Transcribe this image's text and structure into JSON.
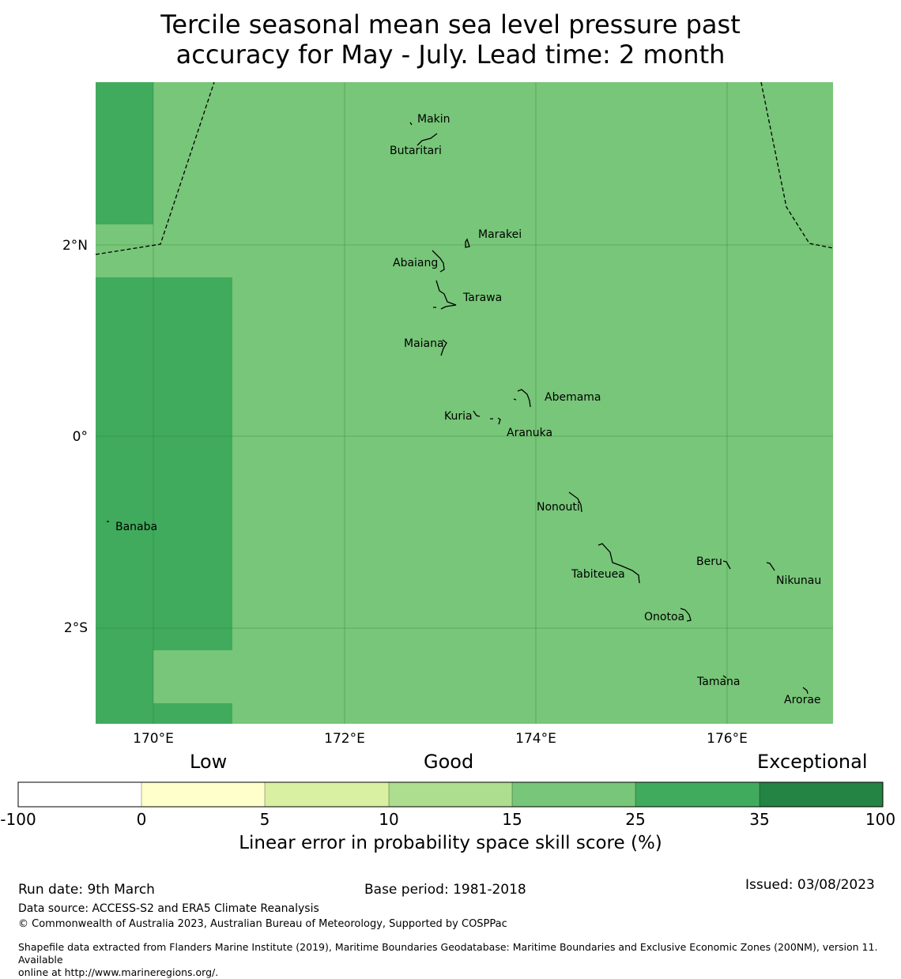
{
  "title_line1": "Tercile seasonal mean sea level pressure past",
  "title_line2": "accuracy for May - July. Lead time: 2 month",
  "map": {
    "lon_labels": [
      "170°E",
      "172°E",
      "174°E",
      "176°E"
    ],
    "lat_labels": [
      "2°N",
      "0°",
      "2°S"
    ],
    "islands": [
      "Makin",
      "Butaritari",
      "Marakei",
      "Abaiang",
      "Tarawa",
      "Maiana",
      "Abemama",
      "Kuria",
      "Aranuka",
      "Nonouti",
      "Banaba",
      "Beru",
      "Tabiteuea",
      "Nikunau",
      "Onotoa",
      "Tamana",
      "Arorae"
    ],
    "colors": {
      "skill_15_25": "#78c679",
      "skill_25_35": "#41ab5d",
      "grid": "#2a6b2a",
      "coast": "#000000"
    }
  },
  "colorbar": {
    "categories": [
      "Low",
      "Good",
      "Exceptional"
    ],
    "ticks": [
      "-100",
      "0",
      "5",
      "10",
      "15",
      "25",
      "35",
      "100"
    ],
    "colors": [
      "#ffffff",
      "#ffffcc",
      "#d9f0a3",
      "#addd8e",
      "#78c679",
      "#41ab5d",
      "#238443"
    ],
    "label": "Linear error in probability space skill score (%)"
  },
  "footer": {
    "run_date": "Run date: 9th March",
    "base_period": "Base period: 1981-2018",
    "issued": "Issued: 03/08/2023",
    "data_source": "Data source: ACCESS-S2 and ERA5 Climate Reanalysis",
    "copyright": "© Commonwealth of Australia 2023, Australian Bureau of Meteorology, Supported by COSPPac",
    "shapefile_line1": "Shapefile data extracted from Flanders Marine Institute (2019), Maritime Boundaries Geodatabase: Maritime Boundaries and Exclusive Economic Zones (200NM), version 11. Available",
    "shapefile_line2": "online at http://www.marineregions.org/."
  }
}
